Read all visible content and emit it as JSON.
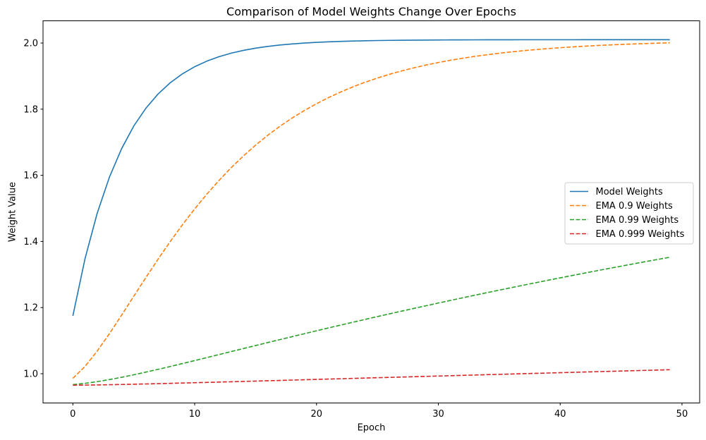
{
  "figure": {
    "title": "Comparison of Model Weights Change Over Epochs",
    "xlabel": "Epoch",
    "ylabel": "Weight Value"
  },
  "chart_data": {
    "type": "line",
    "title": "Comparison of Model Weights Change Over Epochs",
    "xlabel": "Epoch",
    "ylabel": "Weight Value",
    "grid": false,
    "legend_position": "center right",
    "xlim": [
      -2.45,
      51.45
    ],
    "ylim": [
      0.9115,
      2.0672
    ],
    "xticks": [
      0,
      10,
      20,
      30,
      40,
      50
    ],
    "yticks": [
      1.0,
      1.2,
      1.4,
      1.6,
      1.8,
      2.0
    ],
    "x": [
      0,
      1,
      2,
      3,
      4,
      5,
      6,
      7,
      8,
      9,
      10,
      11,
      12,
      13,
      14,
      15,
      16,
      17,
      18,
      19,
      20,
      21,
      22,
      23,
      24,
      25,
      26,
      27,
      28,
      29,
      30,
      31,
      32,
      33,
      34,
      35,
      36,
      37,
      38,
      39,
      40,
      41,
      42,
      43,
      44,
      45,
      46,
      47,
      48,
      49
    ],
    "series": [
      {
        "name": "Model Weights",
        "color": "#1f77b4",
        "style": "solid",
        "values": [
          1.175,
          1.3483,
          1.4856,
          1.5944,
          1.6806,
          1.749,
          1.8031,
          1.8461,
          1.8801,
          1.907,
          1.9284,
          1.9453,
          1.9588,
          1.9694,
          1.9778,
          1.9845,
          1.9898,
          1.994,
          1.9973,
          1.9999,
          2.002,
          2.0037,
          2.005,
          2.006,
          2.0069,
          2.0075,
          2.008,
          2.0084,
          2.0088,
          2.009,
          2.0092,
          2.0094,
          2.0095,
          2.0096,
          2.0097,
          2.0098,
          2.0098,
          2.0099,
          2.0099,
          2.0099,
          2.0099,
          2.0099,
          2.01,
          2.01,
          2.01,
          2.01,
          2.01,
          2.01,
          2.01,
          2.01
        ]
      },
      {
        "name": "EMA 0.9 Weights",
        "color": "#ff7f0e",
        "style": "dashed",
        "values": [
          0.986,
          1.0222,
          1.0686,
          1.1211,
          1.1771,
          1.2343,
          1.2912,
          1.3467,
          1.4,
          1.4507,
          1.4985,
          1.5432,
          1.5847,
          1.6232,
          1.6586,
          1.6912,
          1.7211,
          1.7484,
          1.7733,
          1.7959,
          1.8165,
          1.8352,
          1.8522,
          1.8676,
          1.8815,
          1.8941,
          1.9055,
          1.9158,
          1.9251,
          1.9335,
          1.9411,
          1.9479,
          1.9541,
          1.9596,
          1.9646,
          1.9691,
          1.9732,
          1.9769,
          1.9802,
          1.9831,
          1.9858,
          1.9882,
          1.9904,
          1.9924,
          1.9941,
          1.9957,
          1.9971,
          1.9984,
          1.9996,
          2.0006
        ]
      },
      {
        "name": "EMA 0.99 Weights",
        "color": "#2ca02c",
        "style": "dashed",
        "values": [
          0.9671,
          0.9709,
          0.976,
          0.9822,
          0.9892,
          0.9968,
          1.0049,
          1.0133,
          1.0219,
          1.0308,
          1.0397,
          1.0488,
          1.0579,
          1.067,
          1.0761,
          1.0852,
          1.0942,
          1.1032,
          1.1121,
          1.121,
          1.1298,
          1.1386,
          1.1472,
          1.1558,
          1.1643,
          1.1728,
          1.1811,
          1.1894,
          1.1976,
          1.2057,
          1.2137,
          1.2217,
          1.2296,
          1.2374,
          1.2451,
          1.2528,
          1.2603,
          1.2678,
          1.2752,
          1.2826,
          1.2899,
          1.2971,
          1.3042,
          1.3113,
          1.3183,
          1.3252,
          1.3321,
          1.3389,
          1.3456,
          1.3522
        ]
      },
      {
        "name": "EMA 0.999 Weights",
        "color": "#d62728",
        "style": "dashed",
        "values": [
          0.9652,
          0.9656,
          0.9661,
          0.9667,
          0.9675,
          0.9682,
          0.9691,
          0.9699,
          0.9709,
          0.9718,
          0.9728,
          0.9737,
          0.9747,
          0.9757,
          0.9767,
          0.9777,
          0.9787,
          0.9797,
          0.9808,
          0.9818,
          0.9828,
          0.9838,
          0.9848,
          0.9859,
          0.9869,
          0.9879,
          0.9889,
          0.9899,
          0.991,
          0.992,
          0.993,
          0.994,
          0.995,
          0.996,
          0.9971,
          0.9981,
          0.9991,
          1.0001,
          1.0011,
          1.0021,
          1.0031,
          1.0041,
          1.0051,
          1.0061,
          1.0071,
          1.0081,
          1.0091,
          1.0101,
          1.0111,
          1.0121
        ]
      }
    ]
  }
}
